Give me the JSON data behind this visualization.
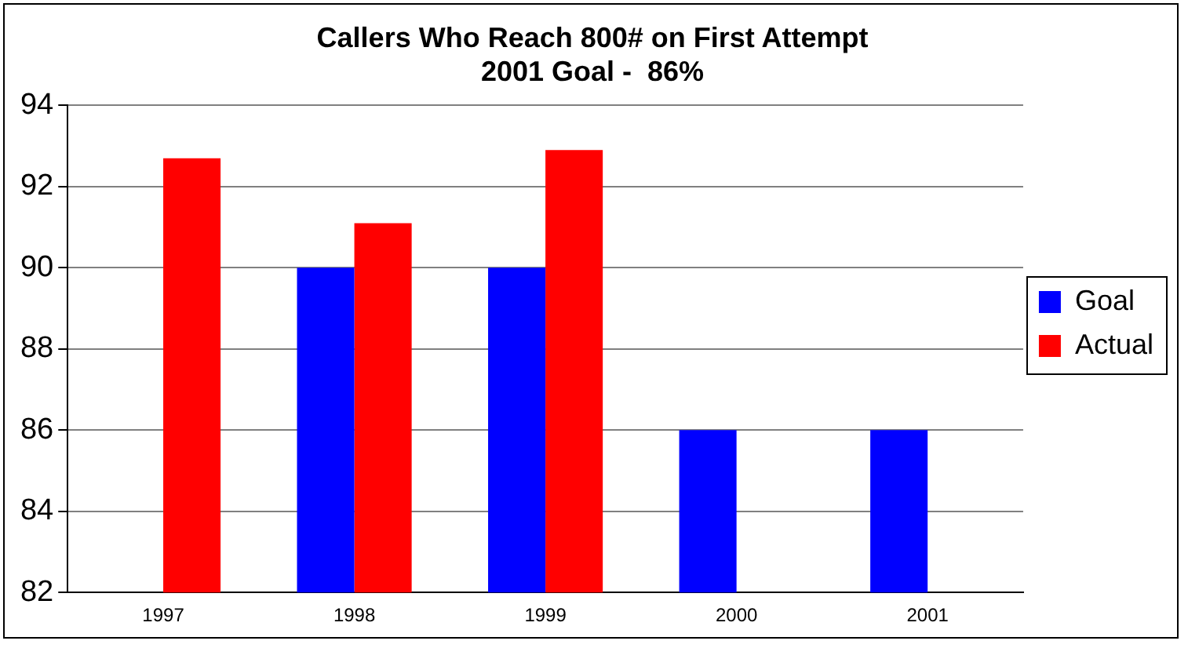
{
  "chart_data": {
    "type": "bar",
    "title": [
      "Callers Who Reach 800# on First Attempt",
      "2001 Goal -  86%"
    ],
    "categories": [
      "1997",
      "1998",
      "1999",
      "2000",
      "2001"
    ],
    "series": [
      {
        "name": "Goal",
        "color": "#0000ff",
        "values": [
          null,
          90,
          90,
          86,
          86
        ]
      },
      {
        "name": "Actual",
        "color": "#ff0000",
        "values": [
          92.7,
          91.1,
          92.9,
          null,
          null
        ]
      }
    ],
    "ylim": [
      82,
      94
    ],
    "yticks": [
      82,
      84,
      86,
      88,
      90,
      92,
      94
    ],
    "grid": "y",
    "legend": "right"
  }
}
